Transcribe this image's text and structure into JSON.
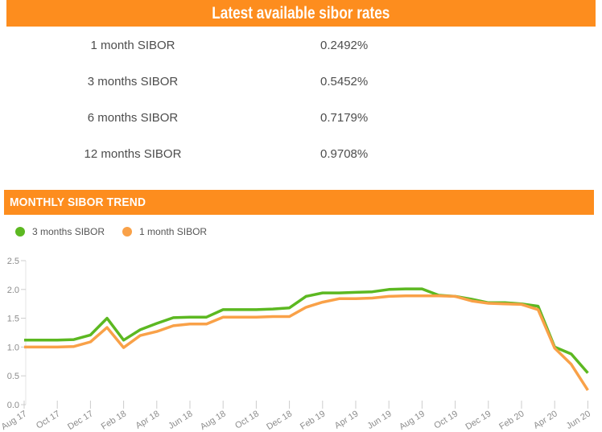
{
  "rates_panel": {
    "title": "Latest available sibor rates",
    "header_bg": "#fd8d1e",
    "rows": [
      {
        "label": "1 month SIBOR",
        "value": "0.2492%"
      },
      {
        "label": "3 months SIBOR",
        "value": "0.5452%"
      },
      {
        "label": "6 months SIBOR",
        "value": "0.7179%"
      },
      {
        "label": "12 months SIBOR",
        "value": "0.9708%"
      }
    ]
  },
  "trend_panel": {
    "title": "MONTHLY SIBOR TREND",
    "header_bg": "#fd8d1e",
    "legend": [
      {
        "label": "3 months SIBOR",
        "color": "#5cb821"
      },
      {
        "label": "1 month SIBOR",
        "color": "#f9a148"
      }
    ]
  },
  "chart_data": {
    "type": "line",
    "x_months": [
      "Aug 17",
      "Sep 17",
      "Oct 17",
      "Nov 17",
      "Dec 17",
      "Jan 18",
      "Feb 18",
      "Mar 18",
      "Apr 18",
      "May 18",
      "Jun 18",
      "Jul 18",
      "Aug 18",
      "Sep 18",
      "Oct 18",
      "Nov 18",
      "Dec 18",
      "Jan 19",
      "Feb 19",
      "Mar 19",
      "Apr 19",
      "May 19",
      "Jun 19",
      "Jul 19",
      "Aug 19",
      "Sep 19",
      "Oct 19",
      "Nov 19",
      "Dec 19",
      "Jan 20",
      "Feb 20",
      "Mar 20",
      "Apr 20",
      "May 20",
      "Jun 20"
    ],
    "x_tick_labels": [
      "Aug 17",
      "Oct 17",
      "Dec 17",
      "Feb 18",
      "Apr 18",
      "Jun 18",
      "Aug 18",
      "Oct 18",
      "Dec 18",
      "Feb 19",
      "Apr 19",
      "Jun 19",
      "Aug 19",
      "Oct 19",
      "Dec 19",
      "Feb 20",
      "Apr 20",
      "Jun 20"
    ],
    "series": [
      {
        "name": "3 months SIBOR",
        "color": "#5cb821",
        "values": [
          1.12,
          1.12,
          1.12,
          1.13,
          1.21,
          1.5,
          1.12,
          1.3,
          1.41,
          1.51,
          1.52,
          1.52,
          1.65,
          1.65,
          1.65,
          1.66,
          1.68,
          1.88,
          1.94,
          1.94,
          1.95,
          1.96,
          2.0,
          2.01,
          2.01,
          1.9,
          1.88,
          1.83,
          1.77,
          1.77,
          1.75,
          1.71,
          1.0,
          0.88,
          0.55
        ]
      },
      {
        "name": "1 month SIBOR",
        "color": "#f9a148",
        "values": [
          1.0,
          1.0,
          1.0,
          1.01,
          1.09,
          1.34,
          0.99,
          1.2,
          1.27,
          1.37,
          1.4,
          1.4,
          1.52,
          1.52,
          1.52,
          1.53,
          1.53,
          1.69,
          1.78,
          1.84,
          1.84,
          1.85,
          1.88,
          1.89,
          1.89,
          1.89,
          1.88,
          1.8,
          1.76,
          1.75,
          1.74,
          1.65,
          0.98,
          0.7,
          0.25
        ]
      }
    ],
    "ylim": [
      0,
      2.5
    ],
    "yticks": [
      "0.0",
      "0.5",
      "1.0",
      "1.5",
      "2.0",
      "2.5"
    ],
    "grid": false,
    "legend_position": "top-left",
    "axis_color": "#e6e6e6",
    "tick_color": "#cccccc",
    "label_color": "#8c8c8c"
  }
}
